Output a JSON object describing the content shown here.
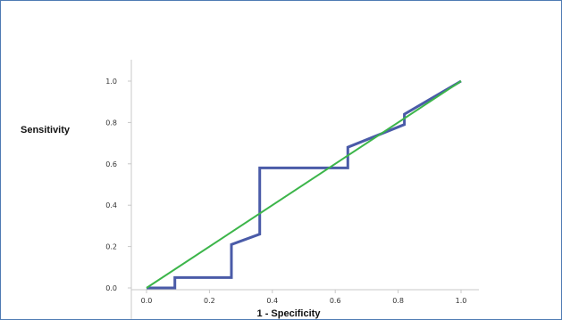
{
  "chart_data": {
    "type": "line",
    "xlabel": "1 - Specificity",
    "ylabel": "Sensitivity",
    "xlim": [
      0.0,
      1.0
    ],
    "ylim": [
      0.0,
      1.0
    ],
    "x_ticks": [
      "0.0",
      "0.2",
      "0.4",
      "0.6",
      "0.8",
      "1.0"
    ],
    "y_ticks": [
      "0.0",
      "0.2",
      "0.4",
      "0.6",
      "0.8",
      "1.0"
    ],
    "grid": false,
    "series": [
      {
        "color": "#4a5ba8",
        "x": [
          0.0,
          0.09,
          0.09,
          0.27,
          0.27,
          0.36,
          0.36,
          0.64,
          0.64,
          0.82,
          0.82,
          1.0
        ],
        "y": [
          0.0,
          0.0,
          0.05,
          0.05,
          0.21,
          0.26,
          0.58,
          0.58,
          0.68,
          0.79,
          0.84,
          1.0
        ]
      },
      {
        "color": "#3cb54a",
        "x": [
          0.0,
          1.0
        ],
        "y": [
          0.0,
          1.0
        ]
      }
    ]
  }
}
